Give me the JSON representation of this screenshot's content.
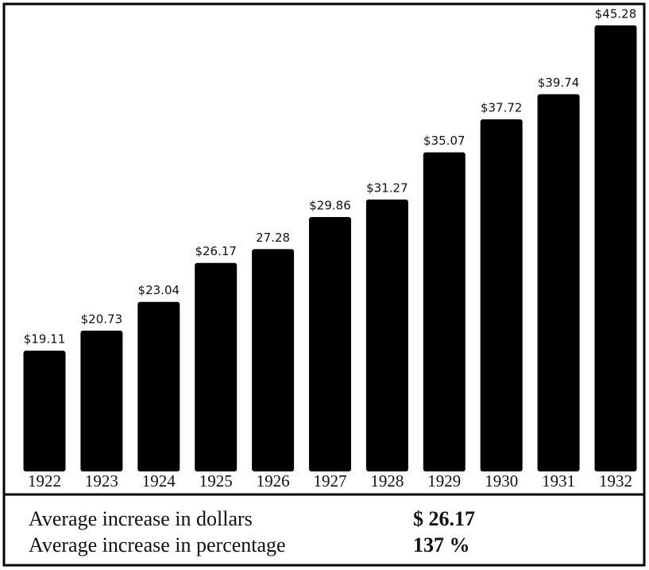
{
  "chart_data": {
    "type": "bar",
    "categories": [
      "1922",
      "1923",
      "1924",
      "1925",
      "1926",
      "1927",
      "1928",
      "1929",
      "1930",
      "1931",
      "1932"
    ],
    "values": [
      19.11,
      20.73,
      23.04,
      26.17,
      27.28,
      29.86,
      31.27,
      35.07,
      37.72,
      39.74,
      45.28
    ],
    "value_labels": [
      "$19.11",
      "$20.73",
      "$23.04",
      "$26.17",
      "27.28",
      "$29.86",
      "$31.27",
      "$35.07",
      "$37.72",
      "$39.74",
      "$45.28"
    ],
    "color": "#000000",
    "ylim": [
      9.4,
      47
    ],
    "annotations": [
      {
        "text": "Average increase in dollars",
        "value": "$ 26.17"
      },
      {
        "text": "Average increase in percentage",
        "value": "137 %"
      }
    ]
  }
}
